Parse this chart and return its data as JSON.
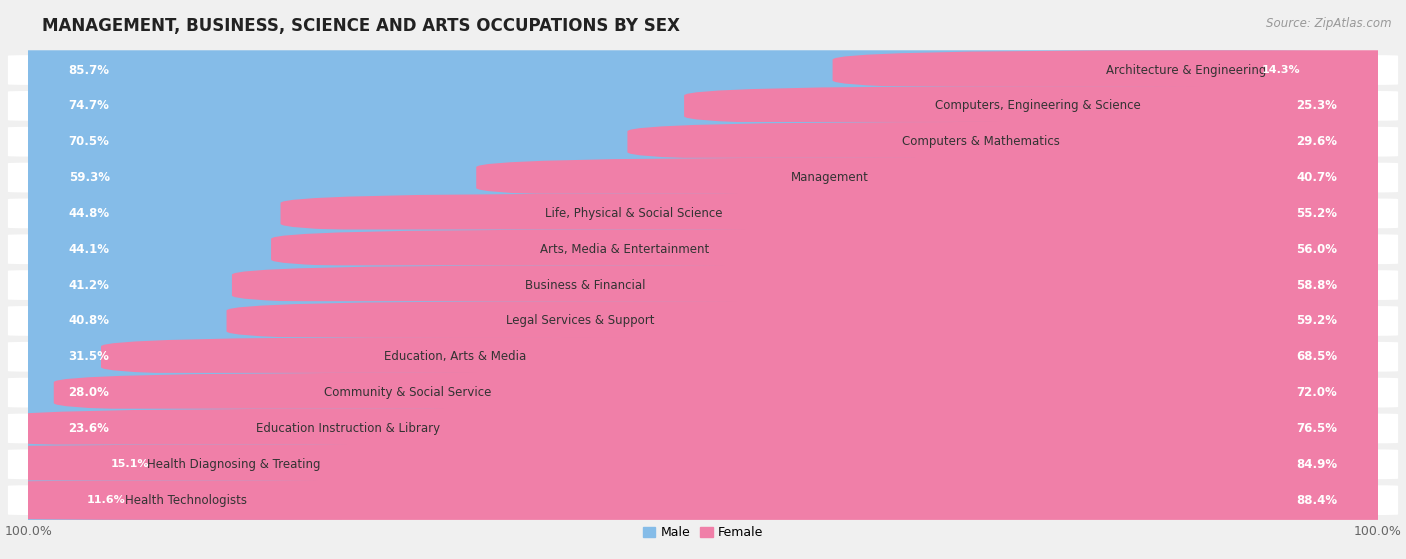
{
  "title": "MANAGEMENT, BUSINESS, SCIENCE AND ARTS OCCUPATIONS BY SEX",
  "source": "Source: ZipAtlas.com",
  "categories": [
    "Architecture & Engineering",
    "Computers, Engineering & Science",
    "Computers & Mathematics",
    "Management",
    "Life, Physical & Social Science",
    "Arts, Media & Entertainment",
    "Business & Financial",
    "Legal Services & Support",
    "Education, Arts & Media",
    "Community & Social Service",
    "Education Instruction & Library",
    "Health Diagnosing & Treating",
    "Health Technologists"
  ],
  "male_pct": [
    85.7,
    74.7,
    70.5,
    59.3,
    44.8,
    44.1,
    41.2,
    40.8,
    31.5,
    28.0,
    23.6,
    15.1,
    11.6
  ],
  "female_pct": [
    14.3,
    25.3,
    29.6,
    40.7,
    55.2,
    56.0,
    58.8,
    59.2,
    68.5,
    72.0,
    76.5,
    84.9,
    88.4
  ],
  "male_color": "#85BCE8",
  "female_color": "#F07FA8",
  "bg_color": "#F0F0F0",
  "bar_row_color": "#FFFFFF",
  "title_fontsize": 12,
  "source_fontsize": 8.5,
  "cat_fontsize": 8.5,
  "pct_fontsize": 8.5,
  "legend_fontsize": 9,
  "xtick_fontsize": 9
}
